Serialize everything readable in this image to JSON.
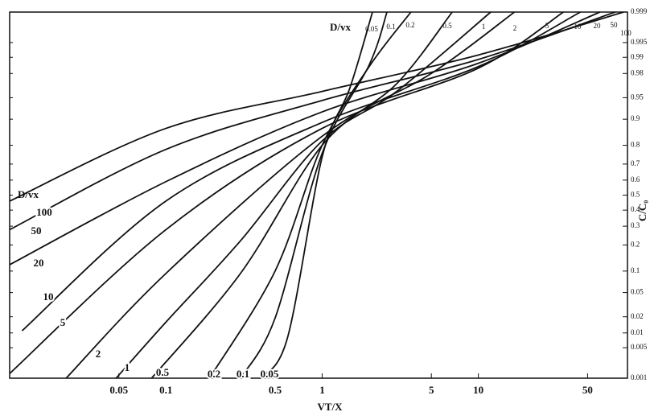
{
  "chart_data": {
    "type": "line",
    "x_label": "VT/X",
    "y_label": "C/C₀",
    "series_label": "D/vx",
    "x_scale": "log",
    "y_scale": "probability",
    "color": "#111111",
    "xlim": [
      0.01,
      90
    ],
    "xticks": [
      0.05,
      0.1,
      0.5,
      1,
      5,
      10,
      50
    ],
    "ylim": [
      0.001,
      0.999
    ],
    "yticks": [
      0.999,
      0.995,
      0.99,
      0.98,
      0.95,
      0.9,
      0.8,
      0.7,
      0.6,
      0.5,
      0.4,
      0.3,
      0.2,
      0.1,
      0.05,
      0.02,
      0.01,
      0.005,
      0.001
    ],
    "series": [
      {
        "name": "0.05",
        "x": [
          0.4,
          0.6,
          1,
          1.5,
          2.1
        ],
        "values": [
          0.001,
          0.008,
          0.74,
          0.964,
          0.999
        ]
      },
      {
        "name": "0.1",
        "x": [
          0.3,
          0.5,
          1,
          2,
          2.6
        ],
        "values": [
          0.001,
          0.019,
          0.76,
          0.986,
          0.999
        ]
      },
      {
        "name": "0.2",
        "x": [
          0.19,
          0.5,
          1,
          2,
          3.7
        ],
        "values": [
          0.001,
          0.1,
          0.8,
          0.985,
          0.999
        ]
      },
      {
        "name": "0.5",
        "x": [
          0.081,
          0.3,
          1,
          3,
          6.8
        ],
        "values": [
          0.001,
          0.093,
          0.8,
          0.97,
          0.999
        ]
      },
      {
        "name": "1",
        "x": [
          0.048,
          0.1,
          0.3,
          1,
          3,
          12
        ],
        "values": [
          0.001,
          0.016,
          0.22,
          0.82,
          0.96,
          0.999
        ]
      },
      {
        "name": "2",
        "x": [
          0.023,
          0.1,
          1,
          5,
          17
        ],
        "values": [
          0.001,
          0.093,
          0.84,
          0.98,
          0.999
        ]
      },
      {
        "name": "5",
        "x": [
          0.01,
          0.1,
          1,
          10,
          35
        ],
        "values": [
          0.0013,
          0.28,
          0.87,
          0.984,
          0.999
        ]
      },
      {
        "name": "10",
        "x": [
          0.012,
          0.1,
          1,
          10,
          45
        ],
        "values": [
          0.011,
          0.46,
          0.89,
          0.985,
          0.999
        ]
      },
      {
        "name": "20",
        "x": [
          0.01,
          0.1,
          1,
          10,
          60
        ],
        "values": [
          0.12,
          0.59,
          0.92,
          0.987,
          0.999
        ]
      },
      {
        "name": "50",
        "x": [
          0.01,
          0.1,
          1,
          10,
          75
        ],
        "values": [
          0.28,
          0.78,
          0.945,
          0.989,
          0.999
        ]
      },
      {
        "name": "100",
        "x": [
          0.01,
          0.1,
          1,
          10,
          85
        ],
        "values": [
          0.46,
          0.87,
          0.96,
          0.991,
          0.999
        ]
      }
    ]
  }
}
